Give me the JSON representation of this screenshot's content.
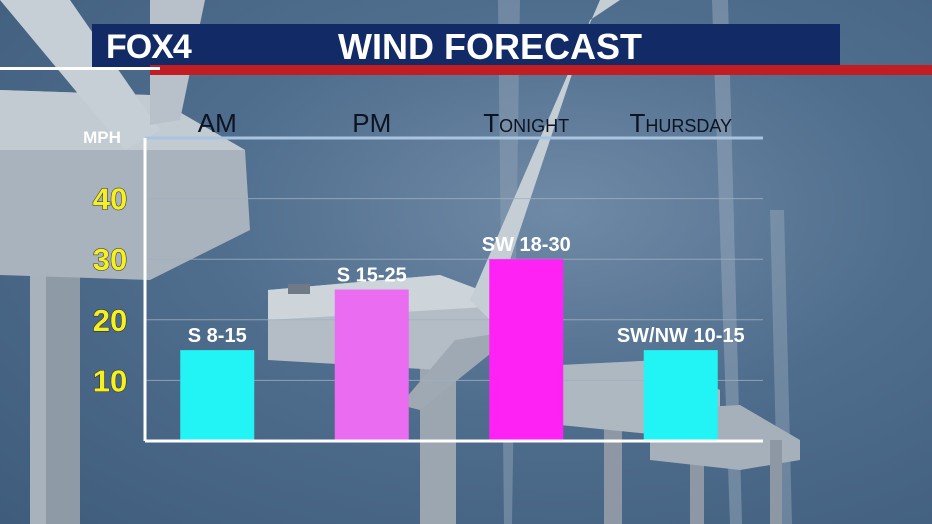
{
  "header": {
    "logo": "FOX4",
    "title": "WIND FORECAST"
  },
  "colors": {
    "header_bg": "#122a66",
    "accent_red": "#c21d22",
    "tick_yellow": "#f7f020"
  },
  "chart_data": {
    "type": "bar",
    "title": "WIND FORECAST",
    "ylabel": "MPH",
    "xlabel": "",
    "ylim": [
      0,
      50
    ],
    "yticks": [
      10,
      20,
      30,
      40
    ],
    "grid": true,
    "categories": [
      "AM",
      "PM",
      "Tonight",
      "Thursday"
    ],
    "values": [
      15,
      25,
      30,
      15
    ],
    "data_labels": [
      "S 8-15",
      "S 15-25",
      "SW 18-30",
      "SW/NW 10-15"
    ],
    "bar_colors": [
      "#22f3f5",
      "#ea6cf0",
      "#ff22f4",
      "#22f3f5"
    ]
  }
}
